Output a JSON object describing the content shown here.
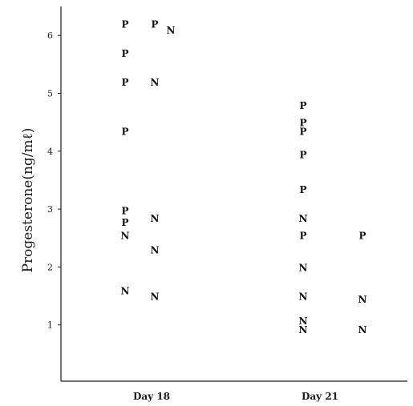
{
  "chart_data": {
    "type": "scatter",
    "title": "",
    "xlabel": "",
    "ylabel": "Progesterone(ng/mℓ)",
    "categories": [
      "Day 18",
      "Day 21"
    ],
    "y_ticks": [
      "1",
      "2",
      "3",
      "4",
      "5",
      "6"
    ],
    "ylim": [
      0,
      6.5
    ],
    "grid": false,
    "legend": "none",
    "points": [
      {
        "category": "Day 18",
        "column": 1,
        "label": "P",
        "y": 6.2
      },
      {
        "category": "Day 18",
        "column": 1,
        "label": "P",
        "y": 5.7
      },
      {
        "category": "Day 18",
        "column": 1,
        "label": "P",
        "y": 5.2
      },
      {
        "category": "Day 18",
        "column": 1,
        "label": "P",
        "y": 4.35
      },
      {
        "category": "Day 18",
        "column": 1,
        "label": "P",
        "y": 2.98
      },
      {
        "category": "Day 18",
        "column": 1,
        "label": "P",
        "y": 2.78
      },
      {
        "category": "Day 18",
        "column": 1,
        "label": "N",
        "y": 2.55
      },
      {
        "category": "Day 18",
        "column": 1,
        "label": "N",
        "y": 1.6
      },
      {
        "category": "Day 18",
        "column": 2,
        "label": "P",
        "y": 6.2
      },
      {
        "category": "Day 18",
        "column": 2,
        "label": "N",
        "y": 6.1
      },
      {
        "category": "Day 18",
        "column": 2,
        "label": "N",
        "y": 5.2
      },
      {
        "category": "Day 18",
        "column": 2,
        "label": "N",
        "y": 2.85
      },
      {
        "category": "Day 18",
        "column": 2,
        "label": "N",
        "y": 2.3
      },
      {
        "category": "Day 18",
        "column": 2,
        "label": "N",
        "y": 1.5
      },
      {
        "category": "Day 21",
        "column": 1,
        "label": "P",
        "y": 4.8
      },
      {
        "category": "Day 21",
        "column": 1,
        "label": "P",
        "y": 4.5
      },
      {
        "category": "Day 21",
        "column": 1,
        "label": "P",
        "y": 4.35
      },
      {
        "category": "Day 21",
        "column": 1,
        "label": "P",
        "y": 3.95
      },
      {
        "category": "Day 21",
        "column": 1,
        "label": "P",
        "y": 3.35
      },
      {
        "category": "Day 21",
        "column": 1,
        "label": "N",
        "y": 2.85
      },
      {
        "category": "Day 21",
        "column": 1,
        "label": "P",
        "y": 2.55
      },
      {
        "category": "Day 21",
        "column": 1,
        "label": "N",
        "y": 2.0
      },
      {
        "category": "Day 21",
        "column": 1,
        "label": "N",
        "y": 1.5
      },
      {
        "category": "Day 21",
        "column": 1,
        "label": "N",
        "y": 1.08
      },
      {
        "category": "Day 21",
        "column": 1,
        "label": "N",
        "y": 0.93
      },
      {
        "category": "Day 21",
        "column": 2,
        "label": "P",
        "y": 2.55
      },
      {
        "category": "Day 21",
        "column": 2,
        "label": "N",
        "y": 1.45
      },
      {
        "category": "Day 21",
        "column": 2,
        "label": "N",
        "y": 0.93
      }
    ]
  }
}
